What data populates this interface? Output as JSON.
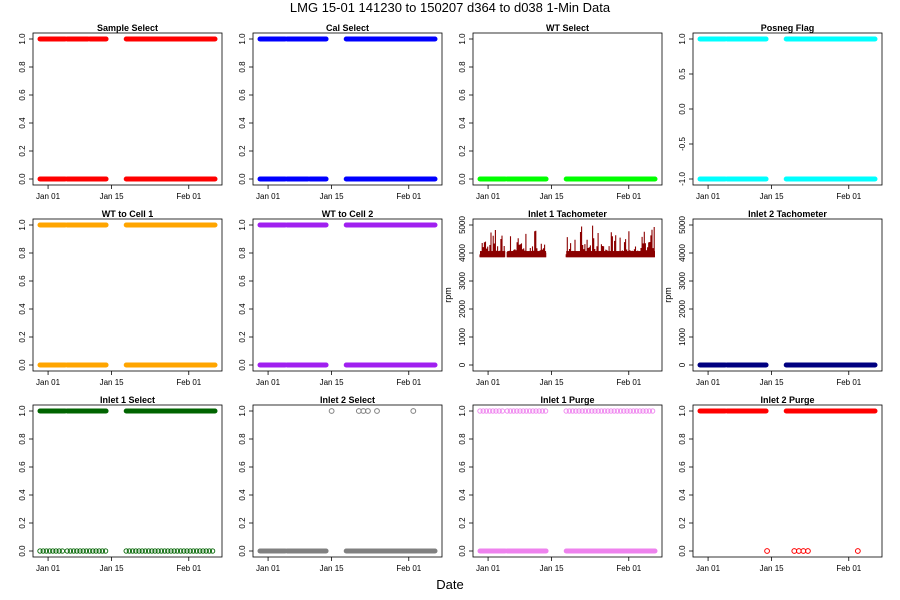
{
  "page": {
    "title": "LMG   15-01    141230 to 150207    d364 to d038   1-Min Data",
    "xlabel": "Date"
  },
  "colors": {
    "axis": "#000000",
    "background": "#ffffff"
  },
  "chart_data": [
    {
      "type": "scatter",
      "title": "Sample Select",
      "color": "#ff0000",
      "marker": "open-circle",
      "ylabel": "",
      "ylim": [
        0,
        1
      ],
      "yticks": [
        "0.0",
        "0.2",
        "0.4",
        "0.6",
        "0.8",
        "1.0"
      ],
      "xlim": [
        "2014-12-30",
        "2015-02-07"
      ],
      "xticks": [
        "Jan 01",
        "Jan 15",
        "Feb 01"
      ],
      "series": [
        {
          "y": 1,
          "ranges": [
            [
              "2014-12-30",
              "2015-01-05"
            ],
            [
              "2015-01-05",
              "2015-01-10"
            ],
            [
              "2015-01-10",
              "2015-01-14"
            ],
            [
              "2015-01-18",
              "2015-02-07"
            ]
          ]
        },
        {
          "y": 0,
          "ranges": [
            [
              "2014-12-30",
              "2015-01-05"
            ],
            [
              "2015-01-05",
              "2015-01-14"
            ],
            [
              "2015-01-18",
              "2015-02-07"
            ]
          ]
        }
      ]
    },
    {
      "type": "scatter",
      "title": "Cal Select",
      "color": "#0000ff",
      "marker": "open-circle",
      "ylabel": "",
      "ylim": [
        0,
        1
      ],
      "yticks": [
        "0.0",
        "0.2",
        "0.4",
        "0.6",
        "0.8",
        "1.0"
      ],
      "xlim": [
        "2014-12-30",
        "2015-02-07"
      ],
      "xticks": [
        "Jan 01",
        "Jan 15",
        "Feb 01"
      ],
      "series": [
        {
          "y": 1,
          "ranges": [
            [
              "2014-12-30",
              "2015-01-05"
            ],
            [
              "2015-01-05",
              "2015-01-14"
            ],
            [
              "2015-01-18",
              "2015-02-07"
            ]
          ]
        },
        {
          "y": 0,
          "ranges": [
            [
              "2014-12-30",
              "2015-01-05"
            ],
            [
              "2015-01-05",
              "2015-01-10"
            ],
            [
              "2015-01-10",
              "2015-01-14"
            ],
            [
              "2015-01-18",
              "2015-02-07"
            ]
          ]
        }
      ]
    },
    {
      "type": "scatter",
      "title": "WT Select",
      "color": "#00ff00",
      "marker": "open-circle",
      "ylabel": "",
      "ylim": [
        0,
        1
      ],
      "yticks": [
        "0.0",
        "0.2",
        "0.4",
        "0.6",
        "0.8",
        "1.0"
      ],
      "xlim": [
        "2014-12-30",
        "2015-02-07"
      ],
      "xticks": [
        "Jan 01",
        "Jan 15",
        "Feb 01"
      ],
      "series": [
        {
          "y": 0,
          "ranges": [
            [
              "2014-12-30",
              "2015-01-05"
            ],
            [
              "2015-01-05",
              "2015-01-14"
            ],
            [
              "2015-01-18",
              "2015-02-07"
            ]
          ]
        }
      ]
    },
    {
      "type": "scatter",
      "title": "Posneg Flag",
      "color": "#00ffff",
      "marker": "open-circle",
      "ylabel": "",
      "ylim": [
        -1,
        1
      ],
      "yticks": [
        "-1.0",
        "-0.5",
        "0.0",
        "0.5",
        "1.0"
      ],
      "xlim": [
        "2014-12-30",
        "2015-02-07"
      ],
      "xticks": [
        "Jan 01",
        "Jan 15",
        "Feb 01"
      ],
      "series": [
        {
          "y": 1,
          "ranges": [
            [
              "2014-12-30",
              "2015-01-05"
            ],
            [
              "2015-01-05",
              "2015-01-14"
            ],
            [
              "2015-01-18",
              "2015-02-07"
            ]
          ]
        },
        {
          "y": -1,
          "ranges": [
            [
              "2014-12-30",
              "2015-01-05"
            ],
            [
              "2015-01-05",
              "2015-01-14"
            ],
            [
              "2015-01-18",
              "2015-02-07"
            ]
          ]
        }
      ]
    },
    {
      "type": "scatter",
      "title": "WT to Cell 1",
      "color": "#ffa500",
      "marker": "open-circle",
      "ylabel": "",
      "ylim": [
        0,
        1
      ],
      "yticks": [
        "0.0",
        "0.2",
        "0.4",
        "0.6",
        "0.8",
        "1.0"
      ],
      "xlim": [
        "2014-12-30",
        "2015-02-07"
      ],
      "xticks": [
        "Jan 01",
        "Jan 15",
        "Feb 01"
      ],
      "series": [
        {
          "y": 1,
          "ranges": [
            [
              "2014-12-30",
              "2015-01-05"
            ],
            [
              "2015-01-05",
              "2015-01-14"
            ],
            [
              "2015-01-18",
              "2015-02-07"
            ]
          ]
        },
        {
          "y": 0,
          "ranges": [
            [
              "2014-12-30",
              "2015-01-05"
            ],
            [
              "2015-01-05",
              "2015-01-14"
            ],
            [
              "2015-01-18",
              "2015-02-07"
            ]
          ]
        }
      ]
    },
    {
      "type": "scatter",
      "title": "WT to Cell 2",
      "color": "#a020f0",
      "marker": "open-circle",
      "ylabel": "",
      "ylim": [
        0,
        1
      ],
      "yticks": [
        "0.0",
        "0.2",
        "0.4",
        "0.6",
        "0.8",
        "1.0"
      ],
      "xlim": [
        "2014-12-30",
        "2015-02-07"
      ],
      "xticks": [
        "Jan 01",
        "Jan 15",
        "Feb 01"
      ],
      "series": [
        {
          "y": 1,
          "ranges": [
            [
              "2014-12-30",
              "2015-01-05"
            ],
            [
              "2015-01-05",
              "2015-01-14"
            ],
            [
              "2015-01-18",
              "2015-02-07"
            ]
          ]
        },
        {
          "y": 0,
          "ranges": [
            [
              "2014-12-30",
              "2015-01-05"
            ],
            [
              "2015-01-05",
              "2015-01-14"
            ],
            [
              "2015-01-18",
              "2015-02-07"
            ]
          ]
        }
      ]
    },
    {
      "type": "scatter",
      "title": "Inlet 1 Tachometer",
      "color": "#8b0000",
      "marker": "open-circle",
      "ylabel": "rpm",
      "ylim": [
        0,
        5000
      ],
      "yticks": [
        "0",
        "1000",
        "2000",
        "3000",
        "4000",
        "5000"
      ],
      "xlim": [
        "2014-12-30",
        "2015-02-07"
      ],
      "xticks": [
        "Jan 01",
        "Jan 15",
        "Feb 01"
      ],
      "band": {
        "base": 3950,
        "low": 3850,
        "high": 5000,
        "ranges": [
          [
            "2014-12-30",
            "2015-01-05"
          ],
          [
            "2015-01-05",
            "2015-01-14"
          ],
          [
            "2015-01-18",
            "2015-02-07"
          ]
        ]
      }
    },
    {
      "type": "scatter",
      "title": "Inlet 2 Tachometer",
      "color": "#000080",
      "marker": "open-circle",
      "ylabel": "rpm",
      "ylim": [
        0,
        5000
      ],
      "yticks": [
        "0",
        "1000",
        "2000",
        "3000",
        "4000",
        "5000"
      ],
      "xlim": [
        "2014-12-30",
        "2015-02-07"
      ],
      "xticks": [
        "Jan 01",
        "Jan 15",
        "Feb 01"
      ],
      "series": [
        {
          "y": 0,
          "ranges": [
            [
              "2014-12-30",
              "2015-01-05"
            ],
            [
              "2015-01-05",
              "2015-01-14"
            ],
            [
              "2015-01-18",
              "2015-02-07"
            ]
          ]
        }
      ]
    },
    {
      "type": "scatter",
      "title": "Inlet 1 Select",
      "color": "#006400",
      "marker": "open-circle",
      "ylabel": "",
      "ylim": [
        0,
        1
      ],
      "yticks": [
        "0.0",
        "0.2",
        "0.4",
        "0.6",
        "0.8",
        "1.0"
      ],
      "xlim": [
        "2014-12-30",
        "2015-02-07"
      ],
      "xticks": [
        "Jan 01",
        "Jan 15",
        "Feb 01"
      ],
      "series": [
        {
          "y": 1,
          "ranges": [
            [
              "2014-12-30",
              "2015-01-05"
            ],
            [
              "2015-01-05",
              "2015-01-14"
            ],
            [
              "2015-01-18",
              "2015-02-07"
            ]
          ]
        },
        {
          "y": 0,
          "ranges": [
            [
              "2014-12-30",
              "2015-01-05"
            ],
            [
              "2015-01-05",
              "2015-01-14"
            ],
            [
              "2015-01-18",
              "2015-02-07"
            ]
          ],
          "sparse": true
        }
      ]
    },
    {
      "type": "scatter",
      "title": "Inlet 2 Select",
      "color": "#808080",
      "marker": "open-circle",
      "ylabel": "",
      "ylim": [
        0,
        1
      ],
      "yticks": [
        "0.0",
        "0.2",
        "0.4",
        "0.6",
        "0.8",
        "1.0"
      ],
      "xlim": [
        "2014-12-30",
        "2015-02-07"
      ],
      "xticks": [
        "Jan 01",
        "Jan 15",
        "Feb 01"
      ],
      "series": [
        {
          "y": 0,
          "ranges": [
            [
              "2014-12-30",
              "2015-01-05"
            ],
            [
              "2015-01-05",
              "2015-01-14"
            ],
            [
              "2015-01-18",
              "2015-02-07"
            ]
          ]
        }
      ],
      "points": [
        {
          "x": "2015-01-15",
          "y": 1
        },
        {
          "x": "2015-01-21",
          "y": 1
        },
        {
          "x": "2015-01-22",
          "y": 1
        },
        {
          "x": "2015-01-23",
          "y": 1
        },
        {
          "x": "2015-01-25",
          "y": 1
        },
        {
          "x": "2015-02-02",
          "y": 1
        }
      ]
    },
    {
      "type": "scatter",
      "title": "Inlet 1 Purge",
      "color": "#ee82ee",
      "marker": "open-circle",
      "ylabel": "",
      "ylim": [
        0,
        1
      ],
      "yticks": [
        "0.0",
        "0.2",
        "0.4",
        "0.6",
        "0.8",
        "1.0"
      ],
      "xlim": [
        "2014-12-30",
        "2015-02-07"
      ],
      "xticks": [
        "Jan 01",
        "Jan 15",
        "Feb 01"
      ],
      "series": [
        {
          "y": 1,
          "ranges": [
            [
              "2014-12-30",
              "2015-01-05"
            ],
            [
              "2015-01-05",
              "2015-01-14"
            ],
            [
              "2015-01-18",
              "2015-02-07"
            ]
          ],
          "sparse": true
        },
        {
          "y": 0,
          "ranges": [
            [
              "2014-12-30",
              "2015-01-05"
            ],
            [
              "2015-01-05",
              "2015-01-14"
            ],
            [
              "2015-01-18",
              "2015-02-07"
            ]
          ]
        }
      ]
    },
    {
      "type": "scatter",
      "title": "Inlet 2 Purge",
      "color": "#ff0000",
      "marker": "open-circle",
      "ylabel": "",
      "ylim": [
        0,
        1
      ],
      "yticks": [
        "0.0",
        "0.2",
        "0.4",
        "0.6",
        "0.8",
        "1.0"
      ],
      "xlim": [
        "2014-12-30",
        "2015-02-07"
      ],
      "xticks": [
        "Jan 01",
        "Jan 15",
        "Feb 01"
      ],
      "series": [
        {
          "y": 1,
          "ranges": [
            [
              "2014-12-30",
              "2015-01-05"
            ],
            [
              "2015-01-05",
              "2015-01-14"
            ],
            [
              "2015-01-18",
              "2015-02-07"
            ]
          ]
        }
      ],
      "points": [
        {
          "x": "2015-01-14",
          "y": 0
        },
        {
          "x": "2015-01-20",
          "y": 0
        },
        {
          "x": "2015-01-21",
          "y": 0
        },
        {
          "x": "2015-01-22",
          "y": 0
        },
        {
          "x": "2015-01-23",
          "y": 0
        },
        {
          "x": "2015-02-03",
          "y": 0
        }
      ]
    }
  ]
}
